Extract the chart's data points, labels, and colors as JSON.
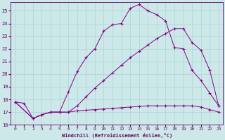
{
  "xlabel": "Windchill (Refroidissement éolien,°C)",
  "background_color": "#cce8e8",
  "grid_color": "#aacccc",
  "line_color": "#880088",
  "xlim": [
    -0.5,
    23.5
  ],
  "ylim": [
    16,
    25.7
  ],
  "yticks": [
    16,
    17,
    18,
    19,
    20,
    21,
    22,
    23,
    24,
    25
  ],
  "xticks": [
    0,
    1,
    2,
    3,
    4,
    5,
    6,
    7,
    8,
    9,
    10,
    11,
    12,
    13,
    14,
    15,
    16,
    17,
    18,
    19,
    20,
    21,
    22,
    23
  ],
  "curve1_x": [
    0,
    1,
    2,
    3,
    4,
    5,
    6,
    7,
    8,
    9,
    10,
    11,
    12,
    13,
    14,
    15,
    16,
    17,
    18,
    19,
    20,
    21,
    22,
    23
  ],
  "curve1_y": [
    17.8,
    17.7,
    16.5,
    16.8,
    17.0,
    17.0,
    18.6,
    20.2,
    21.3,
    22.0,
    23.4,
    23.9,
    24.0,
    25.2,
    25.5,
    25.0,
    24.7,
    24.2,
    22.1,
    22.0,
    20.3,
    19.5,
    18.5,
    17.5
  ],
  "curve2_x": [
    0,
    2,
    3,
    4,
    5,
    6,
    7,
    8,
    9,
    10,
    11,
    12,
    13,
    14,
    15,
    16,
    17,
    18,
    19,
    20,
    21,
    22,
    23
  ],
  "curve2_y": [
    17.8,
    16.5,
    16.8,
    17.0,
    17.0,
    17.0,
    17.5,
    18.2,
    18.9,
    19.5,
    20.1,
    20.7,
    21.3,
    21.8,
    22.3,
    22.8,
    23.2,
    23.6,
    23.6,
    22.5,
    21.9,
    20.3,
    17.5
  ],
  "curve3_x": [
    0,
    2,
    3,
    4,
    5,
    6,
    7,
    8,
    9,
    10,
    11,
    12,
    13,
    14,
    15,
    16,
    17,
    18,
    19,
    20,
    21,
    22,
    23
  ],
  "curve3_y": [
    17.8,
    16.5,
    16.8,
    17.0,
    17.0,
    17.0,
    17.1,
    17.15,
    17.2,
    17.25,
    17.3,
    17.35,
    17.4,
    17.45,
    17.5,
    17.5,
    17.5,
    17.5,
    17.5,
    17.5,
    17.4,
    17.2,
    17.0
  ]
}
